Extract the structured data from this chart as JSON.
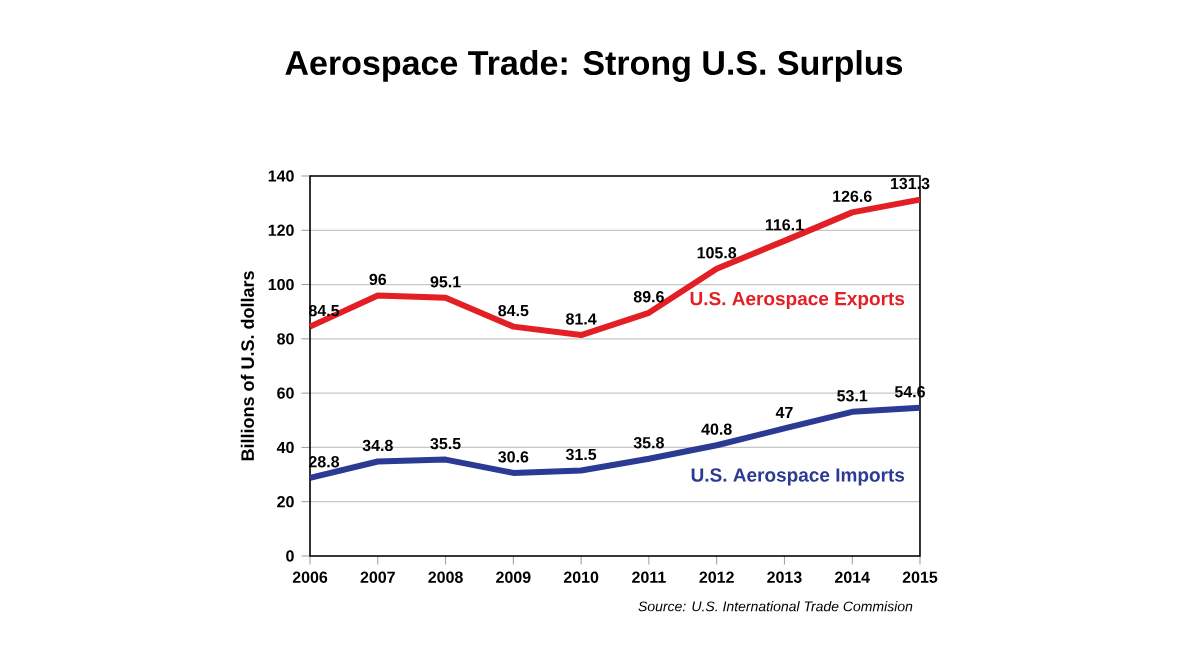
{
  "chart_data": {
    "type": "line",
    "title": "Aerospace Trade: Strong U.S. Surplus",
    "ylabel": "Billions of U.S. dollars",
    "categories": [
      "2006",
      "2007",
      "2008",
      "2009",
      "2010",
      "2011",
      "2012",
      "2013",
      "2014",
      "2015"
    ],
    "series": [
      {
        "name": "U.S. Aerospace Exports",
        "color": "#e31e25",
        "values": [
          84.5,
          96,
          95.1,
          84.5,
          81.4,
          89.6,
          105.8,
          116.1,
          126.6,
          131.3
        ]
      },
      {
        "name": "U.S. Aerospace Imports",
        "color": "#2b3a92",
        "values": [
          28.8,
          34.8,
          35.5,
          30.6,
          31.5,
          35.8,
          40.8,
          47,
          53.1,
          54.6
        ]
      }
    ],
    "ylim": [
      0,
      140
    ],
    "yticks": [
      0,
      20,
      40,
      60,
      80,
      100,
      120,
      140
    ],
    "grid": "y",
    "data_labels": true,
    "legend": false,
    "marker": "none",
    "line_style": "solid",
    "annotations": [
      "Source: U.S. International Trade Commision"
    ]
  }
}
